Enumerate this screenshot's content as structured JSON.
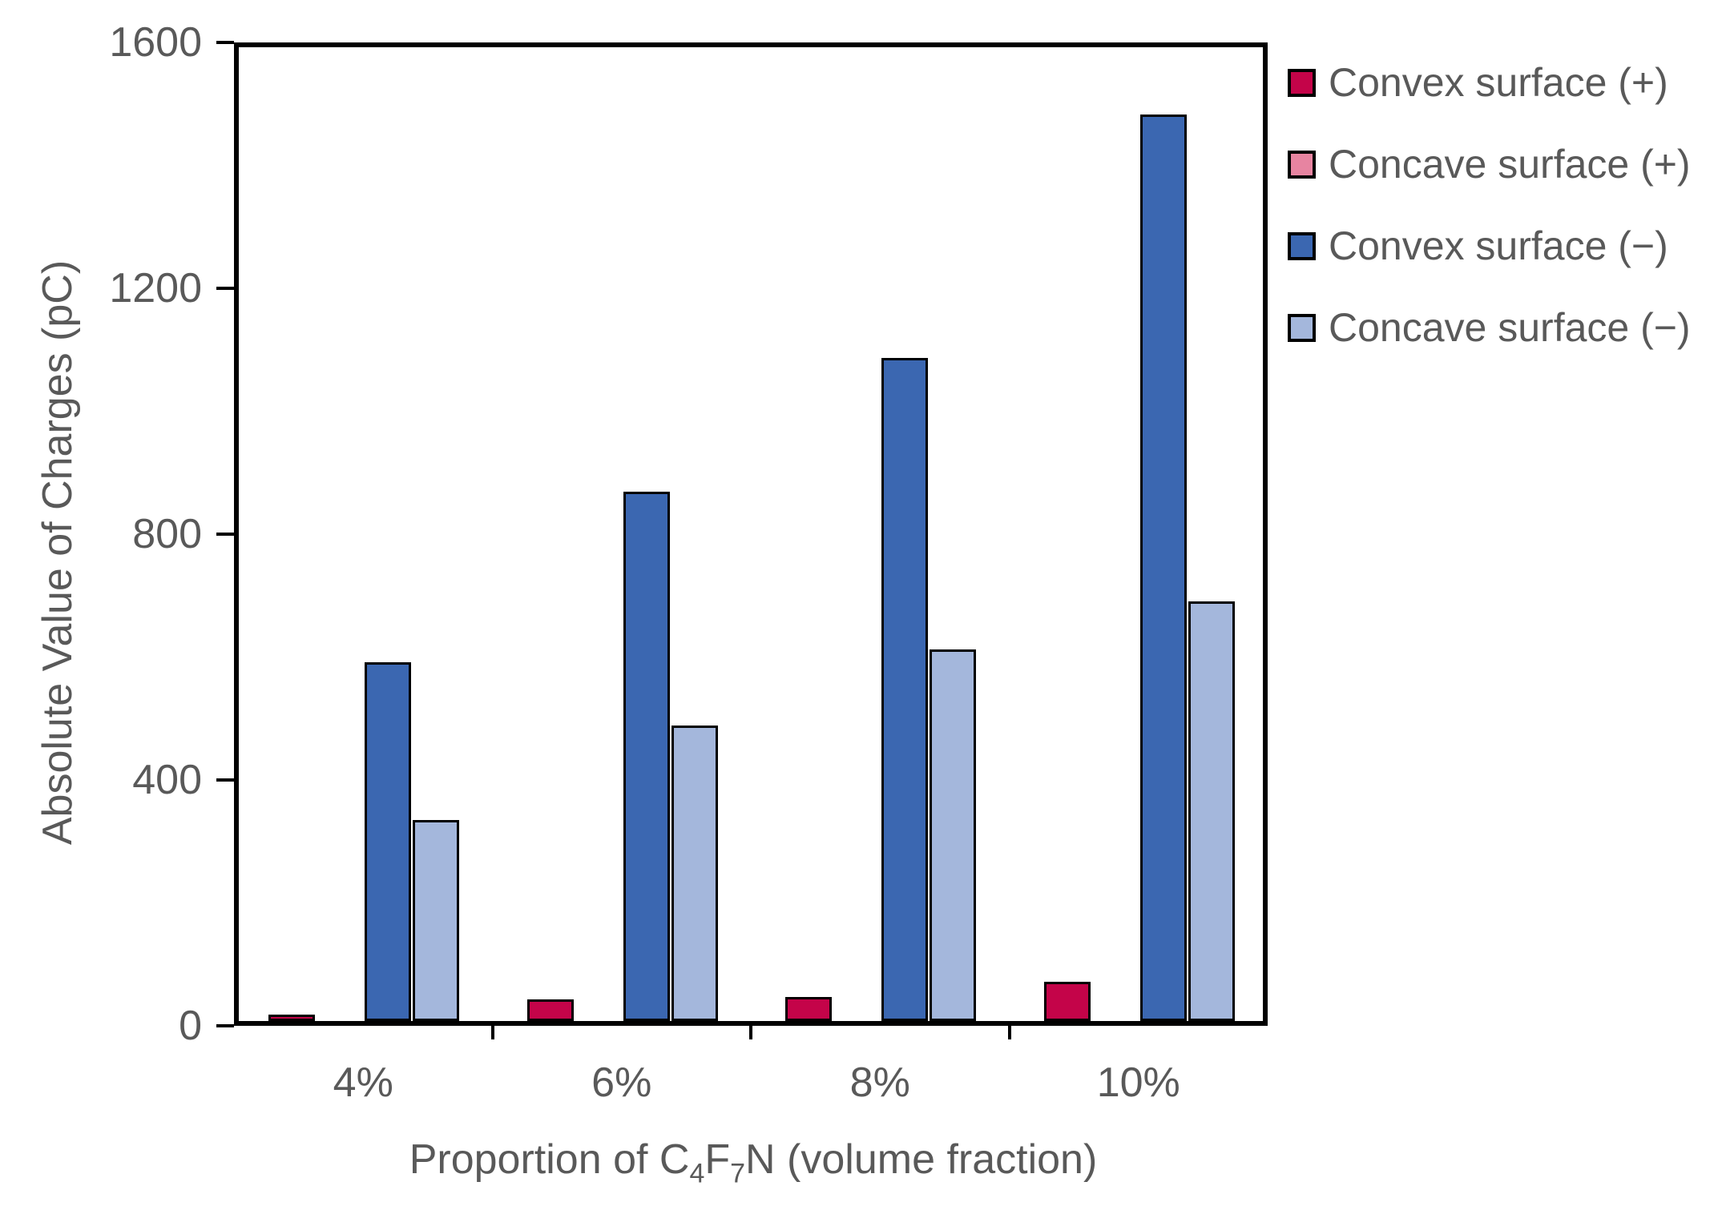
{
  "chart_data": {
    "type": "bar",
    "categories": [
      "4%",
      "6%",
      "8%",
      "10%"
    ],
    "series": [
      {
        "name": "Convex surface (+)",
        "color": "#C40449",
        "values": [
          10,
          35,
          40,
          65
        ]
      },
      {
        "name": "Concave surface (+)",
        "color": "#E784A1",
        "values": [
          0,
          0,
          0,
          0
        ]
      },
      {
        "name": "Convex surface (−)",
        "color": "#3B67B1",
        "values": [
          590,
          870,
          1090,
          1490
        ]
      },
      {
        "name": "Concave surface (−)",
        "color": "#A4B7DC",
        "values": [
          330,
          485,
          610,
          690
        ]
      }
    ],
    "ylabel": "Absolute Value of Charges (pC)",
    "xlabel_parts": {
      "prefix": "Proportion of C",
      "sub1": "4",
      "mid": "F",
      "sub2": "7",
      "suffix": "N (volume fraction)"
    },
    "ylim": [
      0,
      1600
    ],
    "yticks": [
      0,
      400,
      800,
      1200,
      1600
    ],
    "grid": false,
    "legend_position": "outside-right-top",
    "text_color": "#595959",
    "axis_color": "#000000"
  }
}
